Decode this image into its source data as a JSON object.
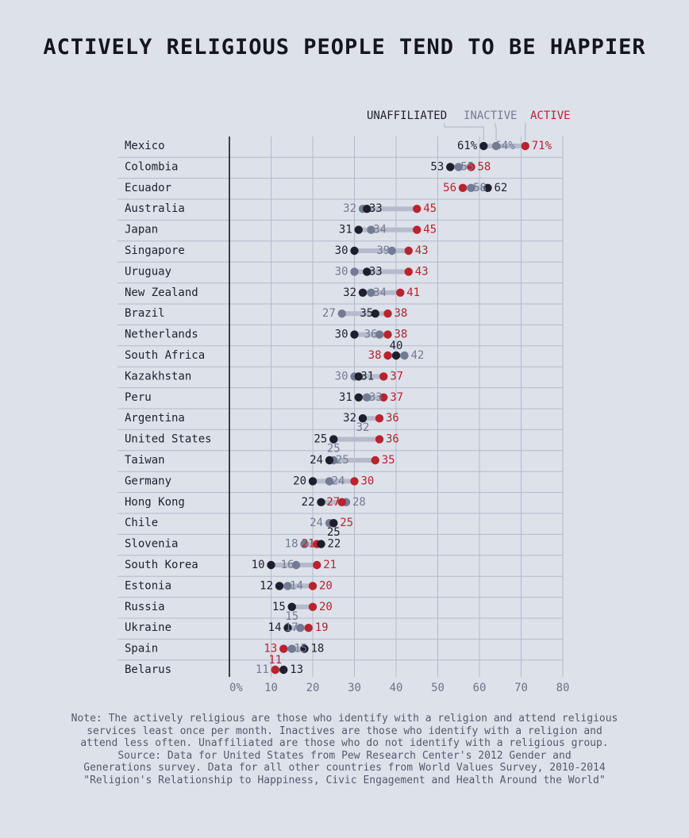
{
  "title": "ACTIVELY RELIGIOUS PEOPLE TEND TO BE HAPPIER",
  "colors": {
    "background": "#dde1ea",
    "unaffiliated": "#1e1f2e",
    "inactive": "#737b94",
    "active": "#b8232e",
    "connector": "#b5bbcc",
    "grid": "#b3bacb",
    "axis": "#15151f"
  },
  "chart_data": {
    "type": "dot",
    "title": "ACTIVELY RELIGIOUS PEOPLE TEND TO BE HAPPIER",
    "xlim": [
      0,
      80
    ],
    "xticks": [
      {
        "value": 0,
        "label": "0%"
      },
      {
        "value": 10,
        "label": "10"
      },
      {
        "value": 20,
        "label": "20"
      },
      {
        "value": 30,
        "label": "30"
      },
      {
        "value": 40,
        "label": "40"
      },
      {
        "value": 50,
        "label": "50"
      },
      {
        "value": 60,
        "label": "60"
      },
      {
        "value": 70,
        "label": "70"
      },
      {
        "value": 80,
        "label": "80"
      }
    ],
    "legend": [
      "UNAFFILIATED",
      "INACTIVE",
      "ACTIVE"
    ],
    "legend_placement": "top-right",
    "series_names": [
      "unaffiliated",
      "inactive",
      "active"
    ],
    "categories": [
      "Mexico",
      "Colombia",
      "Ecuador",
      "Australia",
      "Japan",
      "Singapore",
      "Uruguay",
      "New Zealand",
      "Brazil",
      "Netherlands",
      "South Africa",
      "Kazakhstan",
      "Peru",
      "Argentina",
      "United States",
      "Taiwan",
      "Germany",
      "Hong Kong",
      "Chile",
      "Slovenia",
      "South Korea",
      "Estonia",
      "Russia",
      "Ukraine",
      "Spain",
      "Belarus"
    ],
    "rows": [
      {
        "country": "Mexico",
        "unaffiliated": 61,
        "inactive": 64,
        "active": 71,
        "labels": {
          "unaffiliated": "61%",
          "inactive": "64%",
          "active": "71%"
        }
      },
      {
        "country": "Colombia",
        "unaffiliated": 53,
        "inactive": 55,
        "active": 58,
        "labels": {
          "unaffiliated": "53",
          "inactive": "55",
          "active": "58"
        }
      },
      {
        "country": "Ecuador",
        "unaffiliated": 62,
        "inactive": 58,
        "active": 56,
        "labels": {
          "unaffiliated": "62",
          "inactive": "58",
          "active": "56"
        }
      },
      {
        "country": "Australia",
        "unaffiliated": 33,
        "inactive": 32,
        "active": 45,
        "labels": {
          "unaffiliated": "33",
          "inactive": "32",
          "active": "45"
        }
      },
      {
        "country": "Japan",
        "unaffiliated": 31,
        "inactive": 34,
        "active": 45,
        "labels": {
          "unaffiliated": "31",
          "inactive": "34",
          "active": "45"
        }
      },
      {
        "country": "Singapore",
        "unaffiliated": 30,
        "inactive": 39,
        "active": 43,
        "labels": {
          "unaffiliated": "30",
          "inactive": "39",
          "active": "43"
        }
      },
      {
        "country": "Uruguay",
        "unaffiliated": 33,
        "inactive": 30,
        "active": 43,
        "labels": {
          "unaffiliated": "33",
          "inactive": "30",
          "active": "43"
        }
      },
      {
        "country": "New Zealand",
        "unaffiliated": 32,
        "inactive": 34,
        "active": 41,
        "labels": {
          "unaffiliated": "32",
          "inactive": "34",
          "active": "41"
        }
      },
      {
        "country": "Brazil",
        "unaffiliated": 35,
        "inactive": 27,
        "active": 38,
        "labels": {
          "unaffiliated": "35",
          "inactive": "27",
          "active": "38"
        }
      },
      {
        "country": "Netherlands",
        "unaffiliated": 30,
        "inactive": 36,
        "active": 38,
        "labels": {
          "unaffiliated": "30",
          "inactive": "36",
          "active": "38"
        }
      },
      {
        "country": "South Africa",
        "unaffiliated": 40,
        "inactive": 42,
        "active": 38,
        "labels": {
          "unaffiliated": "40",
          "inactive": "42",
          "active": "38"
        }
      },
      {
        "country": "Kazakhstan",
        "unaffiliated": 31,
        "inactive": 30,
        "active": 37,
        "labels": {
          "unaffiliated": "31",
          "inactive": "30",
          "active": "37"
        }
      },
      {
        "country": "Peru",
        "unaffiliated": 31,
        "inactive": 33,
        "active": 37,
        "labels": {
          "unaffiliated": "31",
          "inactive": "33",
          "active": "37"
        }
      },
      {
        "country": "Argentina",
        "unaffiliated": 32,
        "inactive": 32,
        "active": 36,
        "labels": {
          "unaffiliated": "32",
          "inactive": "32",
          "active": "36"
        }
      },
      {
        "country": "United States",
        "unaffiliated": 25,
        "inactive": 25,
        "active": 36,
        "labels": {
          "unaffiliated": "25",
          "inactive": "25",
          "active": "36"
        }
      },
      {
        "country": "Taiwan",
        "unaffiliated": 24,
        "inactive": 25,
        "active": 35,
        "labels": {
          "unaffiliated": "24",
          "inactive": "25",
          "active": "35"
        }
      },
      {
        "country": "Germany",
        "unaffiliated": 20,
        "inactive": 24,
        "active": 30,
        "labels": {
          "unaffiliated": "20",
          "inactive": "24",
          "active": "30"
        }
      },
      {
        "country": "Hong Kong",
        "unaffiliated": 22,
        "inactive": 28,
        "active": 27,
        "labels": {
          "unaffiliated": "22",
          "inactive": "28",
          "active": "27"
        }
      },
      {
        "country": "Chile",
        "unaffiliated": 25,
        "inactive": 24,
        "active": 25,
        "labels": {
          "unaffiliated": "25",
          "inactive": "24",
          "active": "25"
        }
      },
      {
        "country": "Slovenia",
        "unaffiliated": 22,
        "inactive": 18,
        "active": 21,
        "labels": {
          "unaffiliated": "22",
          "inactive": "18",
          "active": "21"
        }
      },
      {
        "country": "South Korea",
        "unaffiliated": 10,
        "inactive": 16,
        "active": 21,
        "labels": {
          "unaffiliated": "10",
          "inactive": "16",
          "active": "21"
        }
      },
      {
        "country": "Estonia",
        "unaffiliated": 12,
        "inactive": 14,
        "active": 20,
        "labels": {
          "unaffiliated": "12",
          "inactive": "14",
          "active": "20"
        }
      },
      {
        "country": "Russia",
        "unaffiliated": 15,
        "inactive": 15,
        "active": 20,
        "labels": {
          "unaffiliated": "15",
          "inactive": "15",
          "active": "20"
        }
      },
      {
        "country": "Ukraine",
        "unaffiliated": 14,
        "inactive": 17,
        "active": 19,
        "labels": {
          "unaffiliated": "14",
          "inactive": "17",
          "active": "19"
        }
      },
      {
        "country": "Spain",
        "unaffiliated": 18,
        "inactive": 15,
        "active": 13,
        "labels": {
          "unaffiliated": "18",
          "inactive": "15",
          "active": "13"
        }
      },
      {
        "country": "Belarus",
        "unaffiliated": 13,
        "inactive": 11,
        "active": 11,
        "labels": {
          "unaffiliated": "13",
          "inactive": "11",
          "active": "11"
        }
      }
    ]
  },
  "note": {
    "lines": [
      "Note: The actively religious are those who identify with a religion and attend religious",
      "services least once per month. Inactives are those who identify with a religion and",
      "attend less often. Unaffiliated are those who do not identify with a religious group.",
      "Source: Data for United States from Pew Research Center's 2012 Gender and",
      "Generations survey. Data for all other countries from World Values Survey, 2010-2014",
      "\"Religion's Relationship to Happiness, Civic Engagement and Health Around the World\""
    ]
  }
}
